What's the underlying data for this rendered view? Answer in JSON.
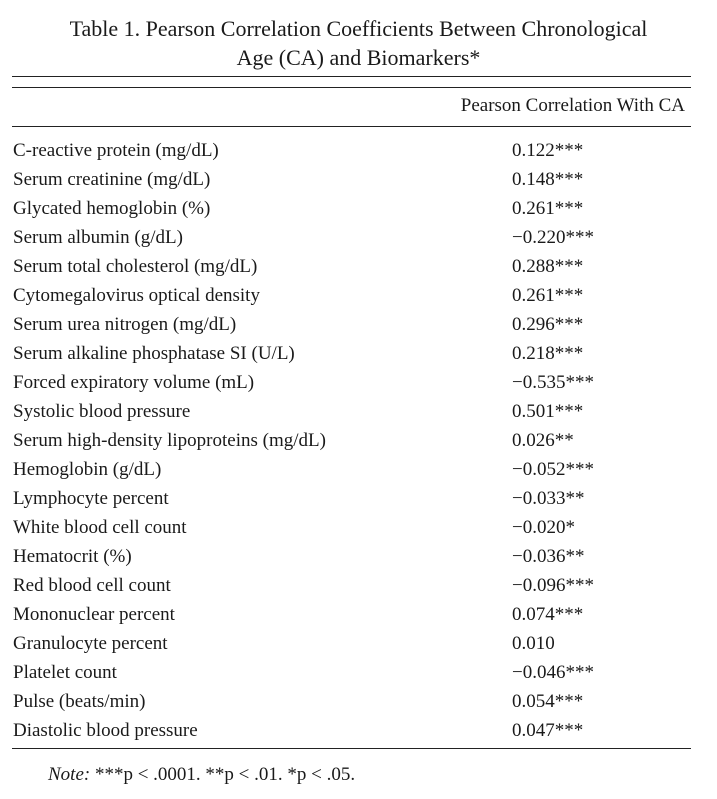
{
  "caption": {
    "line1": "Table 1.  Pearson Correlation Coefficients Between Chronological",
    "line2": "Age (CA) and Biomarkers*"
  },
  "column_header": "Pearson Correlation With CA",
  "rows": [
    {
      "label": "C-reactive protein (mg/dL)",
      "value": "0.122***"
    },
    {
      "label": "Serum creatinine (mg/dL)",
      "value": "0.148***"
    },
    {
      "label": "Glycated hemoglobin (%)",
      "value": "0.261***"
    },
    {
      "label": "Serum albumin (g/dL)",
      "value": "−0.220***"
    },
    {
      "label": "Serum total cholesterol (mg/dL)",
      "value": "0.288***"
    },
    {
      "label": "Cytomegalovirus optical density",
      "value": "0.261***"
    },
    {
      "label": "Serum urea nitrogen (mg/dL)",
      "value": "0.296***"
    },
    {
      "label": "Serum alkaline phosphatase SI (U/L)",
      "value": "0.218***"
    },
    {
      "label": "Forced expiratory volume (mL)",
      "value": "−0.535***"
    },
    {
      "label": "Systolic blood pressure",
      "value": "0.501***"
    },
    {
      "label": "Serum high-density lipoproteins (mg/dL)",
      "value": "0.026**"
    },
    {
      "label": "Hemoglobin (g/dL)",
      "value": "−0.052***"
    },
    {
      "label": "Lymphocyte percent",
      "value": "−0.033**"
    },
    {
      "label": "White blood cell count",
      "value": "−0.020*"
    },
    {
      "label": "Hematocrit (%)",
      "value": "−0.036**"
    },
    {
      "label": "Red blood cell count",
      "value": "−0.096***"
    },
    {
      "label": "Mononuclear percent",
      "value": "0.074***"
    },
    {
      "label": "Granulocyte percent",
      "value": "0.010"
    },
    {
      "label": "Platelet count",
      "value": "−0.046***"
    },
    {
      "label": "Pulse (beats/min)",
      "value": "0.054***"
    },
    {
      "label": "Diastolic blood pressure",
      "value": "0.047***"
    }
  ],
  "note": {
    "prefix": "Note:",
    "text": " ***p < .0001. **p < .01. *p < .05."
  }
}
